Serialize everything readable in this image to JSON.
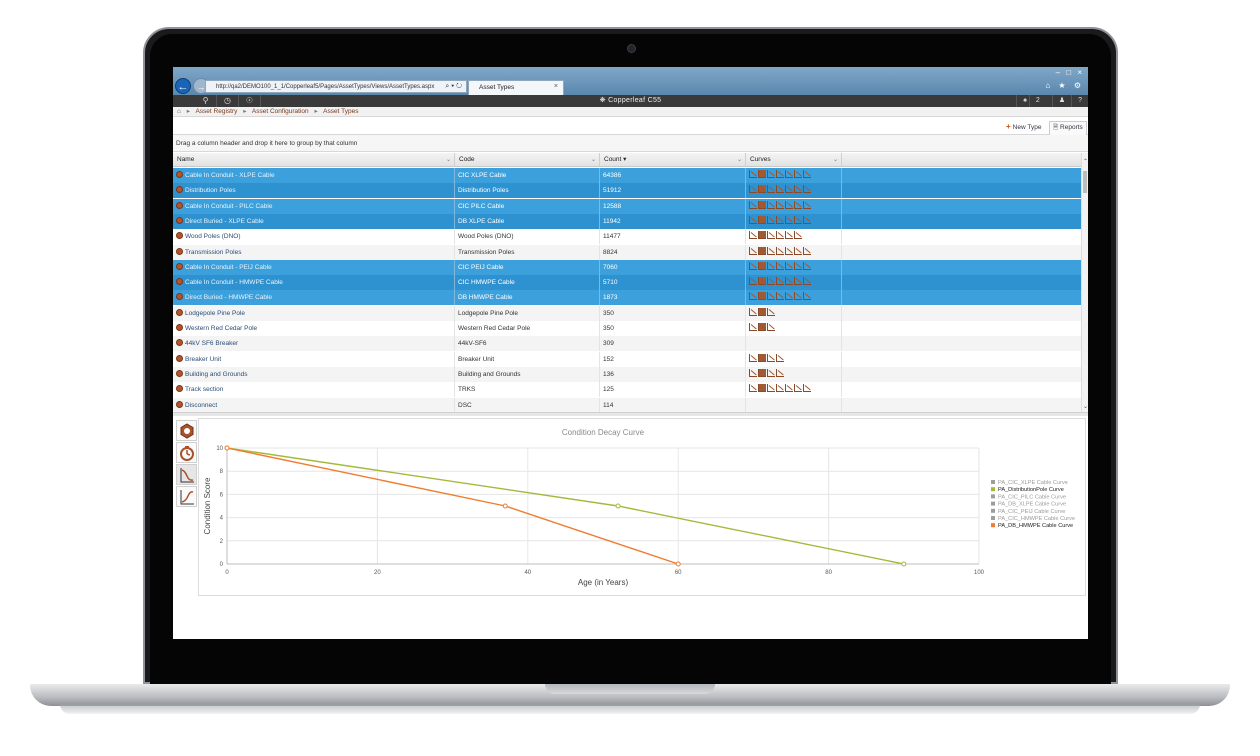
{
  "browser": {
    "address": "http://qa2/DEMO100_1_1/Copperleaf5/Pages/AssetTypes/Views/AssetTypes.aspx",
    "address_controls": "⌕ ▾ ↻",
    "tab_label": "Asset Types",
    "tab_close": "×",
    "window_controls": "– □ ×",
    "right_icons": "⌂ ★ ⚙"
  },
  "app_header": {
    "brand": "Copperleaf C55",
    "notifications_count": "2"
  },
  "breadcrumb": {
    "home_icon": "⌂",
    "separator": "▸",
    "items": [
      "Asset Registry",
      "Asset Configuration",
      "Asset Types"
    ]
  },
  "toolbar": {
    "new_type_label": "New Type",
    "reports_label": "Reports"
  },
  "group_panel": {
    "hint": "Drag a column header and drop it here to group by that column"
  },
  "grid": {
    "columns": [
      "Name",
      "Code",
      "Count ▾",
      "Curves"
    ],
    "rows": [
      {
        "name": "Cable In Conduit - XLPE Cable",
        "code": "CIC XLPE Cable",
        "count": "64386",
        "selected": true,
        "curves": 7
      },
      {
        "name": "Distribution Poles",
        "code": "Distribution Poles",
        "count": "51912",
        "selected": true,
        "curves": 7
      },
      {
        "name": "Cable In Conduit - PILC Cable",
        "code": "CIC PILC Cable",
        "count": "12588",
        "selected": true,
        "curves": 7
      },
      {
        "name": "Direct Buried - XLPE Cable",
        "code": "DB XLPE Cable",
        "count": "11942",
        "selected": true,
        "curves": 7
      },
      {
        "name": "Wood Poles (DNO)",
        "code": "Wood Poles (DNO)",
        "count": "11477",
        "selected": false,
        "curves": 6
      },
      {
        "name": "Transmission Poles",
        "code": "Transmission Poles",
        "count": "8824",
        "selected": false,
        "curves": 7
      },
      {
        "name": "Cable In Conduit - PEIJ Cable",
        "code": "CIC PEIJ Cable",
        "count": "7060",
        "selected": true,
        "curves": 7
      },
      {
        "name": "Cable In Conduit - HMWPE Cable",
        "code": "CIC HMWPE Cable",
        "count": "5710",
        "selected": true,
        "curves": 7
      },
      {
        "name": "Direct Buried - HMWPE Cable",
        "code": "DB HMWPE Cable",
        "count": "1873",
        "selected": true,
        "curves": 7
      },
      {
        "name": "Lodgepole Pine Pole",
        "code": "Lodgepole Pine Pole",
        "count": "350",
        "selected": false,
        "curves": 3
      },
      {
        "name": "Western Red Cedar Pole",
        "code": "Western Red Cedar Pole",
        "count": "350",
        "selected": false,
        "curves": 3
      },
      {
        "name": "44kV SF6 Breaker",
        "code": "44kV-SF6",
        "count": "309",
        "selected": false,
        "curves": 0
      },
      {
        "name": "Breaker Unit",
        "code": "Breaker Unit",
        "count": "152",
        "selected": false,
        "curves": 4
      },
      {
        "name": "Building and Grounds",
        "code": "Building and Grounds",
        "count": "136",
        "selected": false,
        "curves": 4
      },
      {
        "name": "Track section",
        "code": "TRKS",
        "count": "125",
        "selected": false,
        "curves": 7
      },
      {
        "name": "Disconnect",
        "code": "DSC",
        "count": "114",
        "selected": false,
        "curves": 0
      }
    ]
  },
  "side_tools": [
    "asset-type-tool",
    "timer-tool",
    "decay-curve-tool",
    "growth-curve-tool"
  ],
  "colors": {
    "selection": "#3ba0db",
    "accent": "#c4541c",
    "series_green": "#a6b83a",
    "series_orange": "#f07c2f"
  },
  "chart_data": {
    "type": "line",
    "title": "Condition Decay Curve",
    "xlabel": "Age (in Years)",
    "ylabel": "Condition Score",
    "xlim": [
      0,
      100
    ],
    "ylim": [
      0,
      10
    ],
    "xticks": [
      0,
      20,
      40,
      60,
      80,
      100
    ],
    "yticks": [
      0,
      2,
      4,
      6,
      8,
      10
    ],
    "grid": true,
    "legend_position": "right",
    "legend": [
      {
        "name": "PA_CIC_XLPE Cable Curve",
        "color": "#9e9e9e",
        "active": false
      },
      {
        "name": "PA_DistributionPole Curve",
        "color": "#a6b83a",
        "active": true
      },
      {
        "name": "PA_CIC_PILC Cable Curve",
        "color": "#9e9e9e",
        "active": false
      },
      {
        "name": "PA_DB_XLPE Cable Curve",
        "color": "#9e9e9e",
        "active": false
      },
      {
        "name": "PA_CIC_PEIJ Cable Curve",
        "color": "#9e9e9e",
        "active": false
      },
      {
        "name": "PA_CIC_HMWPE Cable Curve",
        "color": "#9e9e9e",
        "active": false
      },
      {
        "name": "PA_DB_HMWPE Cable Curve",
        "color": "#f07c2f",
        "active": true
      }
    ],
    "series": [
      {
        "name": "PA_DistributionPole Curve",
        "color": "#a6b83a",
        "x": [
          0,
          52,
          90
        ],
        "y": [
          10,
          5,
          0
        ]
      },
      {
        "name": "PA_DB_HMWPE Cable Curve",
        "color": "#f07c2f",
        "x": [
          0,
          37,
          60
        ],
        "y": [
          10,
          5,
          0
        ]
      }
    ]
  }
}
